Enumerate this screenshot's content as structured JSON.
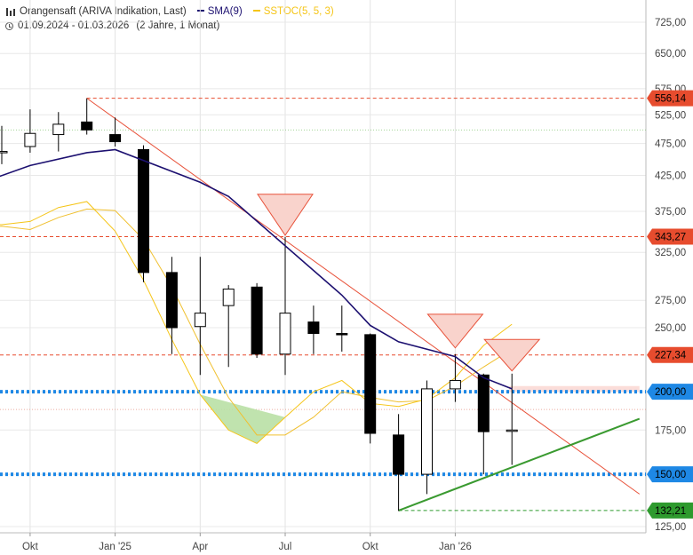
{
  "legend": {
    "instrument": "Orangensaft (ARIVA Indikation, Last)",
    "sma_label": "SMA(9)",
    "sstoc_label": "SSTOC(5, 5, 3)",
    "date_range": "01.09.2024 - 01.03.2026",
    "period": "(2 Jahre, 1 Monat)"
  },
  "colors": {
    "up_fill": "#ffffff",
    "down_fill": "#000000",
    "sma": "#1c1070",
    "sstoc_fast": "#f5c518",
    "sstoc_slow": "#f0c030",
    "trend_down": "#e8523a",
    "trend_up": "#3a9a30",
    "support_dotted": "#1e88e5",
    "badge_red": "#e74c2e",
    "badge_blue": "#1e88e5",
    "badge_green": "#2e9a2e",
    "triangle_fill": "#f9d3cc",
    "triangle_stroke": "#e8523a",
    "green_area": "#b9e0a5"
  },
  "chart_data": {
    "type": "candlestick",
    "x_ticks": [
      "Okt",
      "Jan '25",
      "Apr",
      "Jul",
      "Okt",
      "Jan '26"
    ],
    "y_ticks": [
      "725,00",
      "650,00",
      "575,00",
      "525,00",
      "475,00",
      "425,00",
      "375,00",
      "325,00",
      "275,00",
      "250,00",
      "200,00",
      "175,00",
      "150,00",
      "125,00"
    ],
    "y_log": true,
    "ylim": [
      120,
      760
    ],
    "candles": [
      {
        "month": 0,
        "open": 460,
        "high": 505,
        "low": 442,
        "close": 462
      },
      {
        "month": 1,
        "open": 470,
        "high": 535,
        "low": 460,
        "close": 492
      },
      {
        "month": 2,
        "open": 490,
        "high": 530,
        "low": 462,
        "close": 508
      },
      {
        "month": 3,
        "open": 512,
        "high": 556,
        "low": 490,
        "close": 498
      },
      {
        "month": 4,
        "open": 490,
        "high": 520,
        "low": 470,
        "close": 478
      },
      {
        "month": 5,
        "open": 465,
        "high": 472,
        "low": 293,
        "close": 303
      },
      {
        "month": 6,
        "open": 303,
        "high": 320,
        "low": 228,
        "close": 250
      },
      {
        "month": 7,
        "open": 251,
        "high": 320,
        "low": 212,
        "close": 263
      },
      {
        "month": 8,
        "open": 270,
        "high": 290,
        "low": 218,
        "close": 286
      },
      {
        "month": 9,
        "open": 288,
        "high": 292,
        "low": 225,
        "close": 228
      },
      {
        "month": 10,
        "open": 228,
        "high": 343,
        "low": 212,
        "close": 263
      },
      {
        "month": 11,
        "open": 255,
        "high": 270,
        "low": 228,
        "close": 245
      },
      {
        "month": 12,
        "open": 245,
        "high": 270,
        "low": 230,
        "close": 244
      },
      {
        "month": 13,
        "open": 244,
        "high": 245,
        "low": 167,
        "close": 173
      },
      {
        "month": 14,
        "open": 172,
        "high": 185,
        "low": 132,
        "close": 150
      },
      {
        "month": 15,
        "open": 150,
        "high": 208,
        "low": 140,
        "close": 202
      },
      {
        "month": 16,
        "open": 202,
        "high": 228,
        "low": 193,
        "close": 208
      },
      {
        "month": 17,
        "open": 212,
        "high": 213,
        "low": 150,
        "close": 174
      },
      {
        "month": 18,
        "open": 175,
        "high": 213,
        "low": 155,
        "close": 175
      }
    ],
    "sma": [
      {
        "month": -1,
        "value": 410
      },
      {
        "month": 1,
        "value": 440
      },
      {
        "month": 3,
        "value": 460
      },
      {
        "month": 4,
        "value": 465
      },
      {
        "month": 7,
        "value": 415
      },
      {
        "month": 8,
        "value": 395
      },
      {
        "month": 12,
        "value": 280
      },
      {
        "month": 13,
        "value": 252
      },
      {
        "month": 14,
        "value": 238
      },
      {
        "month": 16,
        "value": 226
      },
      {
        "month": 17,
        "value": 210
      },
      {
        "month": 18,
        "value": 202
      }
    ],
    "sstoc_fast": [
      {
        "month": -1,
        "value": 358
      },
      {
        "month": 0,
        "value": 358
      },
      {
        "month": 1,
        "value": 362
      },
      {
        "month": 2,
        "value": 380
      },
      {
        "month": 3,
        "value": 388
      },
      {
        "month": 4,
        "value": 350
      },
      {
        "month": 5,
        "value": 295
      },
      {
        "month": 6,
        "value": 240
      },
      {
        "month": 7,
        "value": 198
      },
      {
        "month": 8,
        "value": 175
      },
      {
        "month": 9,
        "value": 167
      },
      {
        "month": 10,
        "value": 183
      },
      {
        "month": 11,
        "value": 200
      },
      {
        "month": 12,
        "value": 208
      },
      {
        "month": 13,
        "value": 192
      },
      {
        "month": 14,
        "value": 190
      },
      {
        "month": 15,
        "value": 195
      },
      {
        "month": 16,
        "value": 210
      },
      {
        "month": 17,
        "value": 235
      },
      {
        "month": 18,
        "value": 253
      }
    ],
    "sstoc_slow": [
      {
        "month": -1,
        "value": 355
      },
      {
        "month": 0,
        "value": 356
      },
      {
        "month": 1,
        "value": 352
      },
      {
        "month": 2,
        "value": 367
      },
      {
        "month": 3,
        "value": 378
      },
      {
        "month": 4,
        "value": 376
      },
      {
        "month": 5,
        "value": 340
      },
      {
        "month": 6,
        "value": 288
      },
      {
        "month": 7,
        "value": 236
      },
      {
        "month": 8,
        "value": 196
      },
      {
        "month": 9,
        "value": 172
      },
      {
        "month": 10,
        "value": 172
      },
      {
        "month": 11,
        "value": 183
      },
      {
        "month": 12,
        "value": 200
      },
      {
        "month": 13,
        "value": 196
      },
      {
        "month": 14,
        "value": 193
      },
      {
        "month": 15,
        "value": 194
      },
      {
        "month": 16,
        "value": 204
      },
      {
        "month": 17,
        "value": 218
      },
      {
        "month": 18,
        "value": 232
      }
    ],
    "levels": [
      {
        "value": 556.14,
        "label": "556,14",
        "style": "dashed-red"
      },
      {
        "value": 343.27,
        "label": "343,27",
        "style": "dashed-red"
      },
      {
        "value": 227.34,
        "label": "227,34",
        "style": "dashed-red"
      },
      {
        "value": 200.0,
        "label": "200,00",
        "style": "dotted-blue"
      },
      {
        "value": 150.0,
        "label": "150,00",
        "style": "dotted-blue"
      },
      {
        "value": 132.21,
        "label": "132,21",
        "style": "dashed-green"
      }
    ],
    "faint_levels": [
      {
        "value": 498,
        "style": "dotted-green"
      },
      {
        "value": 188,
        "style": "dotted-red"
      }
    ],
    "trendlines": [
      {
        "from": {
          "month": 3,
          "value": 556.14
        },
        "to": {
          "month": 22.5,
          "value": 140
        },
        "color": "trend_down"
      },
      {
        "from": {
          "month": 14,
          "value": 132.21
        },
        "to": {
          "month": 22.5,
          "value": 182
        },
        "color": "trend_up"
      }
    ],
    "markers": [
      {
        "type": "triangle-down",
        "month": 10,
        "top": 398,
        "bottom": 345
      },
      {
        "type": "triangle-down",
        "month": 16,
        "top": 262,
        "bottom": 233
      },
      {
        "type": "triangle-down",
        "month": 18,
        "top": 240,
        "bottom": 215
      }
    ],
    "shaded_zone": {
      "from": 17.9,
      "to": 22.5,
      "bottom": 200,
      "top": 204
    }
  }
}
